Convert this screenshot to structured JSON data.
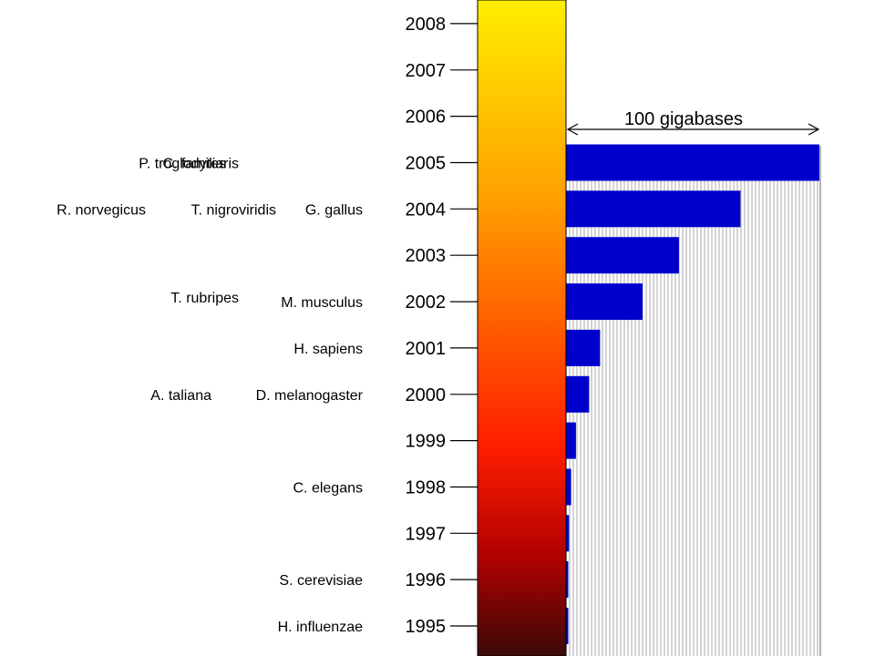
{
  "colors": {
    "bar": "#0000cc",
    "hatch": "#b8b8b8",
    "tick": "#000000",
    "gradient_top": "#ffee00",
    "gradient_mid_upper": "#ffa000",
    "gradient_mid": "#ff1e00",
    "gradient_mid_lower": "#b00000",
    "gradient_bottom": "#3a0a08"
  },
  "scale_label": "100 gigabases",
  "chart_data": {
    "type": "bar",
    "orientation": "horizontal",
    "title": "",
    "xlabel": "",
    "ylabel": "",
    "categories": [
      "1995",
      "1996",
      "1997",
      "1998",
      "1999",
      "2000",
      "2001",
      "2002",
      "2003",
      "2004",
      "2005",
      "2006",
      "2007",
      "2008"
    ],
    "series": [
      {
        "values": [
          0.3,
          0.6,
          1.2,
          2.0,
          3.9,
          9.1,
          13.4,
          30.1,
          44.4,
          68.6,
          99.6,
          null,
          null,
          null
        ]
      }
    ],
    "xlim": [
      0,
      100
    ],
    "scale_bar_value": 100,
    "scale_bar_unit": "gigabases",
    "year_ticks": [
      "2008",
      "2007",
      "2006",
      "2005",
      "2004",
      "2003",
      "2002",
      "2001",
      "2000",
      "1999",
      "1998",
      "1997",
      "1996",
      "1995"
    ],
    "annotations": [
      {
        "text": "P. troglodytes",
        "year": "2005",
        "column": 0
      },
      {
        "text": "C. familiaris",
        "year": "2005",
        "column": 1
      },
      {
        "text": "R. norvegicus",
        "year": "2004",
        "column": 0
      },
      {
        "text": "T. nigroviridis",
        "year": "2004",
        "column": 1
      },
      {
        "text": "G. gallus",
        "year": "2004",
        "column": 2
      },
      {
        "text": "T. rubripes",
        "year": "2002",
        "column": 1
      },
      {
        "text": "M. musculus",
        "year": "2002",
        "column": 2
      },
      {
        "text": "H. sapiens",
        "year": "2001",
        "column": 2
      },
      {
        "text": "A. taliana",
        "year": "2000",
        "column": 1
      },
      {
        "text": "D. melanogaster",
        "year": "2000",
        "column": 2
      },
      {
        "text": "C. elegans",
        "year": "1998",
        "column": 2
      },
      {
        "text": "S. cerevisiae",
        "year": "1996",
        "column": 2
      },
      {
        "text": "H. influenzae",
        "year": "1995",
        "column": 2
      }
    ]
  }
}
